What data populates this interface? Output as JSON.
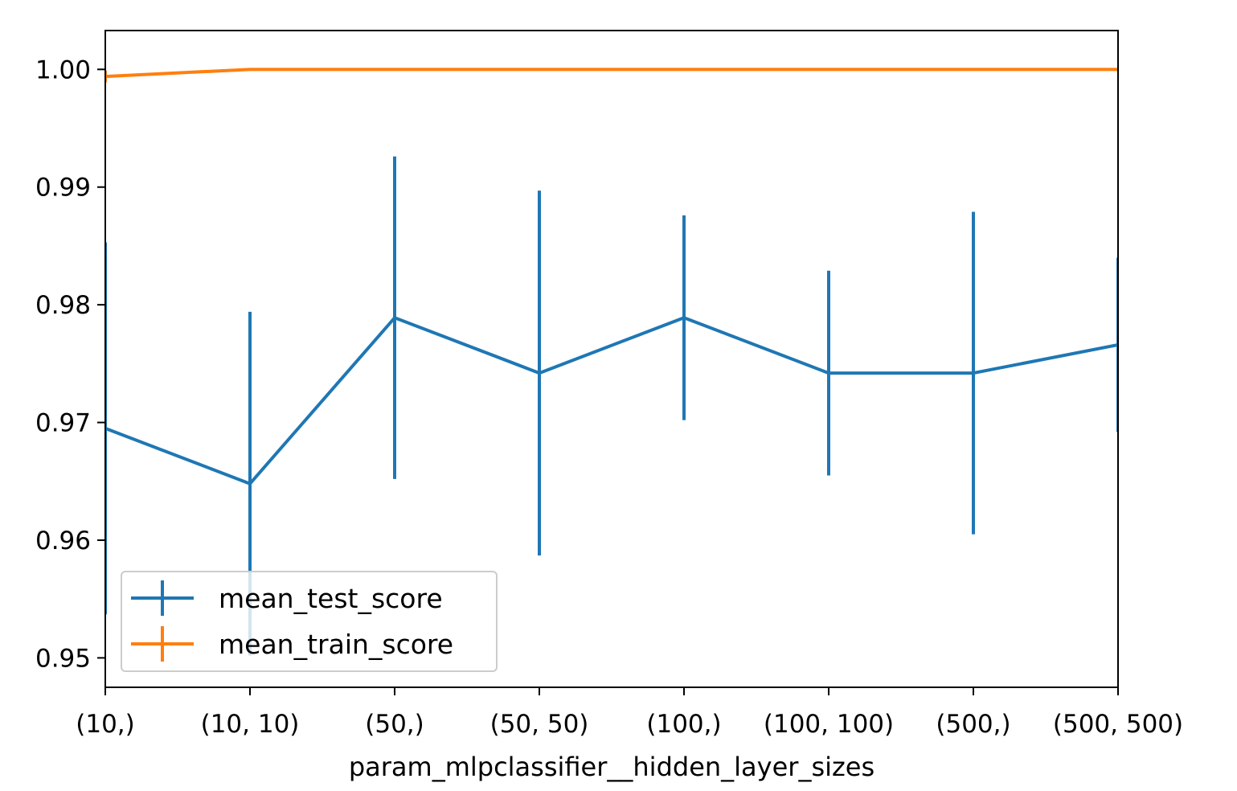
{
  "chart_data": {
    "type": "line",
    "title": "",
    "xlabel": "param_mlpclassifier__hidden_layer_sizes",
    "ylabel": "",
    "categories": [
      "(10,)",
      "(10, 10)",
      "(50,)",
      "(50, 50)",
      "(100,)",
      "(100, 100)",
      "(500,)",
      "(500, 500)"
    ],
    "ylim": [
      0.9475,
      1.0033
    ],
    "yticks": [
      0.95,
      0.96,
      0.97,
      0.98,
      0.99,
      1.0
    ],
    "ytick_labels": [
      "0.95",
      "0.96",
      "0.97",
      "0.98",
      "0.99",
      "1.00"
    ],
    "grid": false,
    "legend_position": "lower-left",
    "series": [
      {
        "name": "mean_test_score",
        "color": "#1f77b4",
        "values": [
          0.9695,
          0.9648,
          0.9789,
          0.9742,
          0.9789,
          0.9742,
          0.9742,
          0.9766
        ],
        "error": [
          0.0158,
          0.0146,
          0.0137,
          0.0155,
          0.0087,
          0.0087,
          0.0137,
          0.0074
        ]
      },
      {
        "name": "mean_train_score",
        "color": "#ff7f0e",
        "values": [
          0.9994,
          1.0,
          1.0,
          1.0,
          1.0,
          1.0,
          1.0,
          1.0
        ],
        "error": [
          0.0005,
          0,
          0,
          0,
          0,
          0,
          0,
          0
        ]
      }
    ]
  }
}
